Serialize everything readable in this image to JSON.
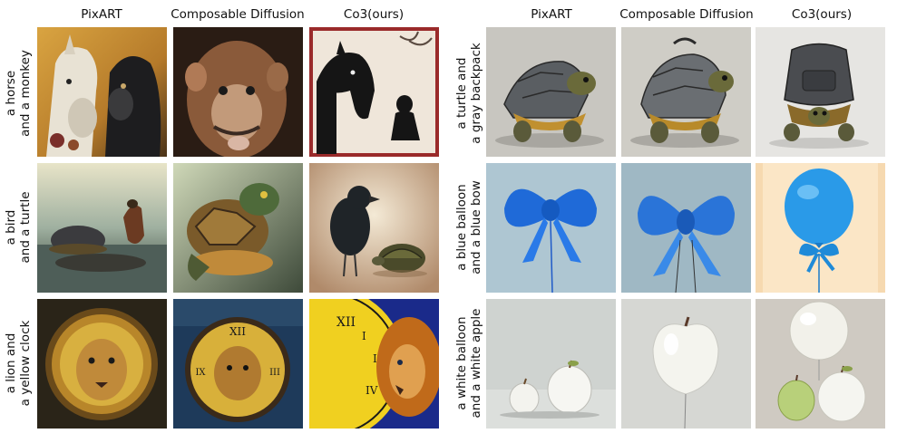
{
  "left_panel": {
    "columns": [
      "PixART",
      "Composable Diffusion",
      "Co3(ours)"
    ],
    "rows": [
      {
        "line1": "a horse",
        "line2": "and a monkey"
      },
      {
        "line1": "a bird",
        "line2": "and a turtle"
      },
      {
        "line1": "a lion and",
        "line2": "a yellow clock"
      }
    ]
  },
  "right_panel": {
    "columns": [
      "PixART",
      "Composable Diffusion",
      "Co3(ours)"
    ],
    "rows": [
      {
        "line1": "a turtle and",
        "line2": "a gray backpack"
      },
      {
        "line1": "a blue balloon",
        "line2": "and a blue bow"
      },
      {
        "line1": "a white balloon",
        "line2": "and a white apple"
      }
    ]
  }
}
